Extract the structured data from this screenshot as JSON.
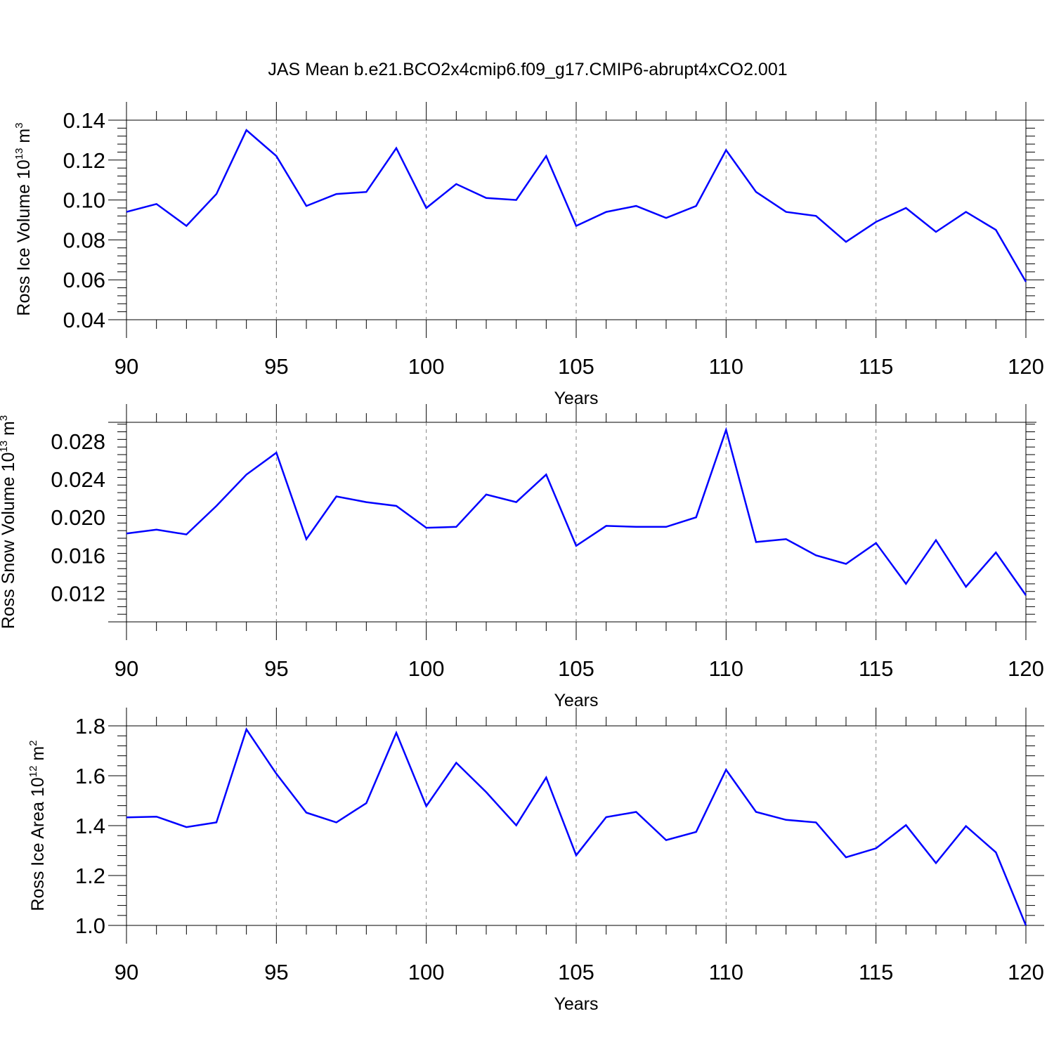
{
  "title": "JAS Mean b.e21.BCO2x4cmip6.f09_g17.CMIP6-abrupt4xCO2.001",
  "colors": {
    "line": "#0000ff",
    "axis": "#000000",
    "grid": "#808080"
  },
  "chart_data": [
    {
      "type": "line",
      "ylabel": {
        "main": "Ross Ice Volume 10",
        "sup": "13",
        "unit": " m",
        "unit_sup": "3"
      },
      "xlabel": "Years",
      "xlim": [
        90,
        120
      ],
      "ylim": [
        0.04,
        0.14
      ],
      "xticks": [
        90,
        95,
        100,
        105,
        110,
        115,
        120
      ],
      "yticks": [
        "0.04",
        "0.06",
        "0.08",
        "0.10",
        "0.12",
        "0.14"
      ],
      "grid_x": [
        95,
        100,
        105,
        110,
        115
      ],
      "x": [
        90,
        91,
        92,
        93,
        94,
        95,
        96,
        97,
        98,
        99,
        100,
        101,
        102,
        103,
        104,
        105,
        106,
        107,
        108,
        109,
        110,
        111,
        112,
        113,
        114,
        115,
        116,
        117,
        118,
        119,
        120
      ],
      "series": [
        {
          "values": [
            0.094,
            0.098,
            0.087,
            0.103,
            0.135,
            0.122,
            0.097,
            0.103,
            0.104,
            0.126,
            0.096,
            0.108,
            0.101,
            0.1,
            0.122,
            0.087,
            0.094,
            0.097,
            0.091,
            0.097,
            0.125,
            0.104,
            0.094,
            0.092,
            0.079,
            0.089,
            0.096,
            0.084,
            0.094,
            0.085,
            0.059
          ]
        }
      ]
    },
    {
      "type": "line",
      "ylabel": {
        "main": "Ross Snow Volume 10",
        "sup": "13",
        "unit": " m",
        "unit_sup": "3"
      },
      "xlabel": "Years",
      "xlim": [
        90,
        120
      ],
      "ylim": [
        0.009,
        0.03
      ],
      "xticks": [
        90,
        95,
        100,
        105,
        110,
        115,
        120
      ],
      "yticks": [
        "0.012",
        "0.016",
        "0.020",
        "0.024",
        "0.028"
      ],
      "grid_x": [
        95,
        100,
        105,
        110,
        115
      ],
      "x": [
        90,
        91,
        92,
        93,
        94,
        95,
        96,
        97,
        98,
        99,
        100,
        101,
        102,
        103,
        104,
        105,
        106,
        107,
        108,
        109,
        110,
        111,
        112,
        113,
        114,
        115,
        116,
        117,
        118,
        119,
        120
      ],
      "series": [
        {
          "values": [
            0.0183,
            0.0187,
            0.0182,
            0.0212,
            0.0245,
            0.0268,
            0.0177,
            0.0222,
            0.0216,
            0.0212,
            0.0189,
            0.019,
            0.0224,
            0.0216,
            0.0245,
            0.017,
            0.0191,
            0.019,
            0.019,
            0.02,
            0.0292,
            0.0174,
            0.0177,
            0.016,
            0.0151,
            0.0173,
            0.013,
            0.0176,
            0.0127,
            0.0163,
            0.0118
          ]
        }
      ]
    },
    {
      "type": "line",
      "ylabel": {
        "main": "Ross Ice Area 10",
        "sup": "12",
        "unit": " m",
        "unit_sup": "2"
      },
      "xlabel": "Years",
      "xlim": [
        90,
        120
      ],
      "ylim": [
        1.0,
        1.8
      ],
      "xticks": [
        90,
        95,
        100,
        105,
        110,
        115,
        120
      ],
      "yticks": [
        "1.0",
        "1.2",
        "1.4",
        "1.6",
        "1.8"
      ],
      "grid_x": [
        95,
        100,
        105,
        110,
        115
      ],
      "x": [
        90,
        91,
        92,
        93,
        94,
        95,
        96,
        97,
        98,
        99,
        100,
        101,
        102,
        103,
        104,
        105,
        106,
        107,
        108,
        109,
        110,
        111,
        112,
        113,
        114,
        115,
        116,
        117,
        118,
        119,
        120
      ],
      "series": [
        {
          "values": [
            1.433,
            1.436,
            1.394,
            1.413,
            1.786,
            1.608,
            1.452,
            1.413,
            1.49,
            1.772,
            1.478,
            1.652,
            1.534,
            1.401,
            1.593,
            1.281,
            1.434,
            1.455,
            1.342,
            1.375,
            1.624,
            1.455,
            1.423,
            1.413,
            1.273,
            1.309,
            1.402,
            1.25,
            1.398,
            1.293,
            1.0
          ]
        }
      ]
    }
  ]
}
